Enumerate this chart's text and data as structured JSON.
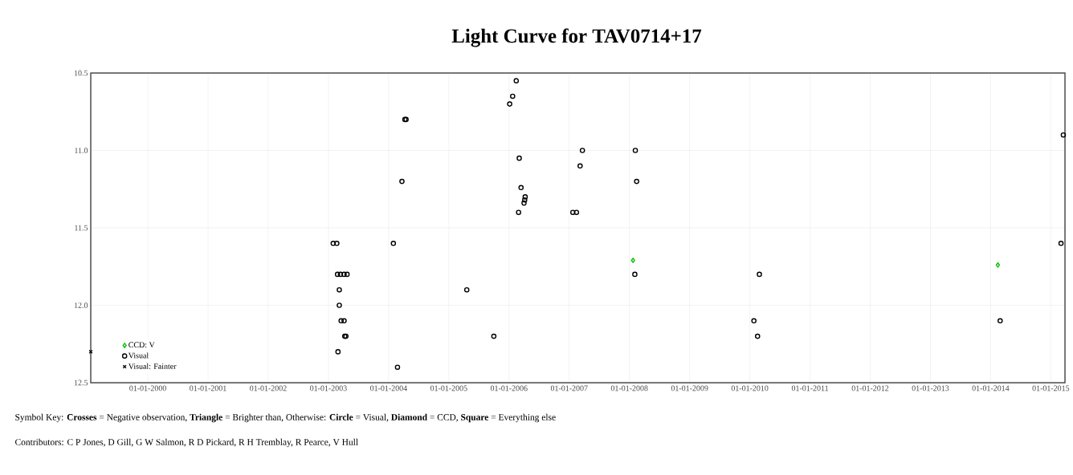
{
  "chart_data": {
    "type": "scatter",
    "title": "Light Curve for TAV0714+17",
    "xlim": [
      "1999-01-20",
      "2015-03-28"
    ],
    "ylim": [
      12.5,
      10.5
    ],
    "xticks": [
      {
        "value": "2000-01-01",
        "label": "01-01-2000"
      },
      {
        "value": "2001-01-01",
        "label": "01-01-2001"
      },
      {
        "value": "2002-01-01",
        "label": "01-01-2002"
      },
      {
        "value": "2003-01-01",
        "label": "01-01-2003"
      },
      {
        "value": "2004-01-01",
        "label": "01-01-2004"
      },
      {
        "value": "2005-01-01",
        "label": "01-01-2005"
      },
      {
        "value": "2006-01-01",
        "label": "01-01-2006"
      },
      {
        "value": "2007-01-01",
        "label": "01-01-2007"
      },
      {
        "value": "2008-01-01",
        "label": "01-01-2008"
      },
      {
        "value": "2009-01-01",
        "label": "01-01-2009"
      },
      {
        "value": "2010-01-01",
        "label": "01-01-2010"
      },
      {
        "value": "2011-01-01",
        "label": "01-01-2011"
      },
      {
        "value": "2012-01-01",
        "label": "01-01-2012"
      },
      {
        "value": "2013-01-01",
        "label": "01-01-2013"
      },
      {
        "value": "2014-01-01",
        "label": "01-01-2014"
      },
      {
        "value": "2015-01-01",
        "label": "01-01-2015"
      }
    ],
    "yticks": [
      10.5,
      {
        "value": 11,
        "label": "11.0"
      },
      11.5,
      {
        "value": 12,
        "label": "12.0"
      },
      12.5
    ],
    "grid": true,
    "legend": "bottom left",
    "series": [
      {
        "name": "CCD: V",
        "color": "#00c000",
        "marker": "diamond",
        "x": [
          "2008-01-23",
          "2014-02-14"
        ],
        "values": [
          11.71,
          11.74
        ]
      },
      {
        "name": "Visual",
        "color": "#000000",
        "marker": "circle",
        "x": [
          "2003-01-30",
          "2003-02-21",
          "2003-02-25",
          "2003-03-15",
          "2003-04-06",
          "2003-04-24",
          "2003-03-08",
          "2003-03-08",
          "2003-03-19",
          "2003-04-06",
          "2003-04-10",
          "2003-04-17",
          "2003-02-28",
          "2004-04-09",
          "2004-04-16",
          "2004-03-22",
          "2004-01-30",
          "2004-02-24",
          "2005-04-20",
          "2005-10-01",
          "2006-02-14",
          "2006-01-23",
          "2006-01-05",
          "2006-03-04",
          "2006-03-15",
          "2006-04-09",
          "2006-04-06",
          "2006-04-02",
          "2006-02-28",
          "2007-01-23",
          "2007-02-14",
          "2007-03-22",
          "2007-03-08",
          "2008-02-06",
          "2008-02-14",
          "2008-02-03",
          "2010-02-28",
          "2010-01-26",
          "2010-02-17",
          "2014-02-28",
          "2015-03-04",
          "2015-03-18"
        ],
        "values": [
          11.6,
          11.6,
          11.8,
          11.8,
          11.8,
          11.8,
          11.9,
          12.0,
          12.1,
          12.1,
          12.2,
          12.2,
          12.3,
          10.8,
          10.8,
          11.2,
          11.6,
          12.4,
          11.9,
          12.2,
          10.55,
          10.65,
          10.7,
          11.05,
          11.24,
          11.3,
          11.32,
          11.34,
          11.4,
          11.4,
          11.4,
          11.0,
          11.1,
          11.0,
          11.2,
          11.8,
          11.8,
          12.1,
          12.2,
          12.1,
          11.6,
          10.9
        ]
      },
      {
        "name": "Visual: Fainter",
        "color": "#000000",
        "marker": "cross",
        "x": [
          "1999-01-20"
        ],
        "values": [
          12.3
        ]
      }
    ],
    "annotations": [
      "Symbol Key:  **Crosses** = Negative observation, **Triangle** = Brighter than,   Otherwise: **Circle** = Visual, **Diamond** = CCD, **Square** = Everything else",
      "Contributors:  C P Jones, D Gill, G W Salmon, R D Pickard, R H Tremblay, R Pearce, V Hull"
    ]
  }
}
